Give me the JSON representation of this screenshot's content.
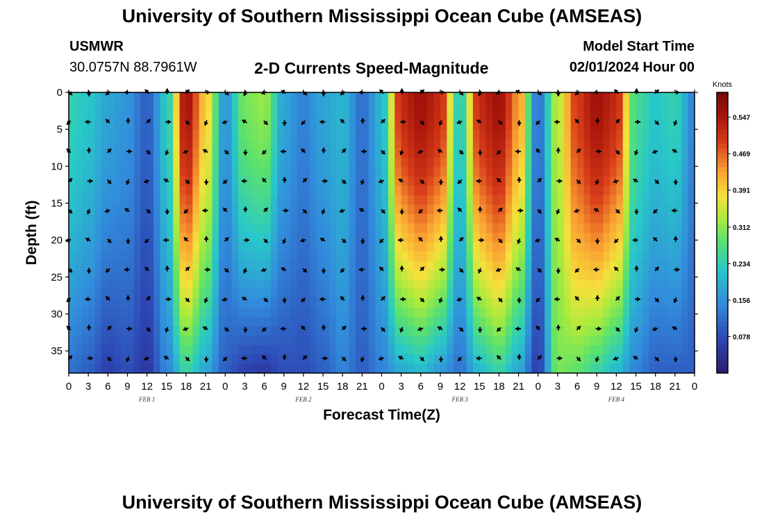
{
  "header": {
    "title": "University of Southern Mississippi Ocean Cube (AMSEAS)",
    "station": "USMWR",
    "coords": "30.0757N  88.7961W",
    "subtitle": "2-D Currents Speed-Magnitude",
    "model_start_label": "Model Start Time",
    "model_start_value": "02/01/2024 Hour 00"
  },
  "footer": {
    "title": "University of Southern Mississippi Ocean Cube (AMSEAS)"
  },
  "chart_data": {
    "type": "heatmap",
    "title": "2-D Currents Speed-Magnitude",
    "xlabel": "Forecast Time(Z)",
    "ylabel": "Depth (ft)",
    "xlim": [
      0,
      96
    ],
    "ylim": [
      0,
      38
    ],
    "x_ticks": [
      0,
      3,
      6,
      9,
      12,
      15,
      18,
      21,
      24,
      27,
      30,
      33,
      36,
      39,
      42,
      45,
      48,
      51,
      54,
      57,
      60,
      63,
      66,
      69,
      72,
      75,
      78,
      81,
      84,
      87,
      90,
      93,
      96
    ],
    "x_tick_labels": [
      "0",
      "3",
      "6",
      "9",
      "12",
      "15",
      "18",
      "21",
      "0",
      "3",
      "6",
      "9",
      "12",
      "15",
      "18",
      "21",
      "0",
      "3",
      "6",
      "9",
      "12",
      "15",
      "18",
      "21",
      "0",
      "3",
      "6",
      "9",
      "12",
      "15",
      "18",
      "21",
      "0"
    ],
    "y_ticks": [
      0,
      5,
      10,
      15,
      20,
      25,
      30,
      35
    ],
    "y_tick_labels": [
      "0",
      "5",
      "10",
      "15",
      "20",
      "25",
      "30",
      "35"
    ],
    "day_labels": [
      {
        "hour": 12,
        "text": "FEB 1"
      },
      {
        "hour": 36,
        "text": "FEB 2"
      },
      {
        "hour": 60,
        "text": "FEB 3"
      },
      {
        "hour": 84,
        "text": "FEB 4"
      }
    ],
    "colorbar": {
      "unit": "Knots",
      "min": 0.0,
      "max": 0.6,
      "ticks": [
        0.547,
        0.469,
        0.391,
        0.312,
        0.234,
        0.156,
        0.078
      ],
      "tick_labels": [
        "0.547",
        "0.469",
        "0.391",
        "0.312",
        "0.234",
        "0.156",
        "0.078"
      ]
    },
    "speed_profile_knots": [
      {
        "hour": 0,
        "surface": 0.24,
        "bottom": 0.12
      },
      {
        "hour": 3,
        "surface": 0.22,
        "bottom": 0.1
      },
      {
        "hour": 6,
        "surface": 0.18,
        "bottom": 0.06
      },
      {
        "hour": 9,
        "surface": 0.16,
        "bottom": 0.08
      },
      {
        "hour": 12,
        "surface": 0.1,
        "bottom": 0.05
      },
      {
        "hour": 15,
        "surface": 0.22,
        "bottom": 0.14
      },
      {
        "hour": 18,
        "surface": 0.56,
        "bottom": 0.24
      },
      {
        "hour": 21,
        "surface": 0.4,
        "bottom": 0.18
      },
      {
        "hour": 24,
        "surface": 0.16,
        "bottom": 0.1
      },
      {
        "hour": 27,
        "surface": 0.3,
        "bottom": 0.06
      },
      {
        "hour": 30,
        "surface": 0.32,
        "bottom": 0.05
      },
      {
        "hour": 33,
        "surface": 0.18,
        "bottom": 0.08
      },
      {
        "hour": 36,
        "surface": 0.14,
        "bottom": 0.08
      },
      {
        "hour": 39,
        "surface": 0.18,
        "bottom": 0.1
      },
      {
        "hour": 42,
        "surface": 0.2,
        "bottom": 0.14
      },
      {
        "hour": 45,
        "surface": 0.12,
        "bottom": 0.1
      },
      {
        "hour": 48,
        "surface": 0.2,
        "bottom": 0.14
      },
      {
        "hour": 51,
        "surface": 0.52,
        "bottom": 0.18
      },
      {
        "hour": 54,
        "surface": 0.56,
        "bottom": 0.2
      },
      {
        "hour": 57,
        "surface": 0.52,
        "bottom": 0.16
      },
      {
        "hour": 60,
        "surface": 0.22,
        "bottom": 0.12
      },
      {
        "hour": 63,
        "surface": 0.52,
        "bottom": 0.2
      },
      {
        "hour": 66,
        "surface": 0.56,
        "bottom": 0.24
      },
      {
        "hour": 69,
        "surface": 0.44,
        "bottom": 0.18
      },
      {
        "hour": 72,
        "surface": 0.12,
        "bottom": 0.06
      },
      {
        "hour": 75,
        "surface": 0.34,
        "bottom": 0.3
      },
      {
        "hour": 78,
        "surface": 0.5,
        "bottom": 0.28
      },
      {
        "hour": 81,
        "surface": 0.56,
        "bottom": 0.24
      },
      {
        "hour": 84,
        "surface": 0.52,
        "bottom": 0.2
      },
      {
        "hour": 87,
        "surface": 0.26,
        "bottom": 0.14
      },
      {
        "hour": 90,
        "surface": 0.22,
        "bottom": 0.1
      },
      {
        "hour": 93,
        "surface": 0.24,
        "bottom": 0.1
      },
      {
        "hour": 96,
        "surface": 0.14,
        "bottom": 0.1
      }
    ],
    "vector_depths_ft": [
      0,
      4,
      8,
      12,
      16,
      20,
      24,
      28,
      32,
      36
    ],
    "vector_direction_pattern_deg": [
      135,
      180,
      225,
      270,
      315,
      0,
      45,
      90,
      135,
      200,
      250,
      300
    ]
  }
}
